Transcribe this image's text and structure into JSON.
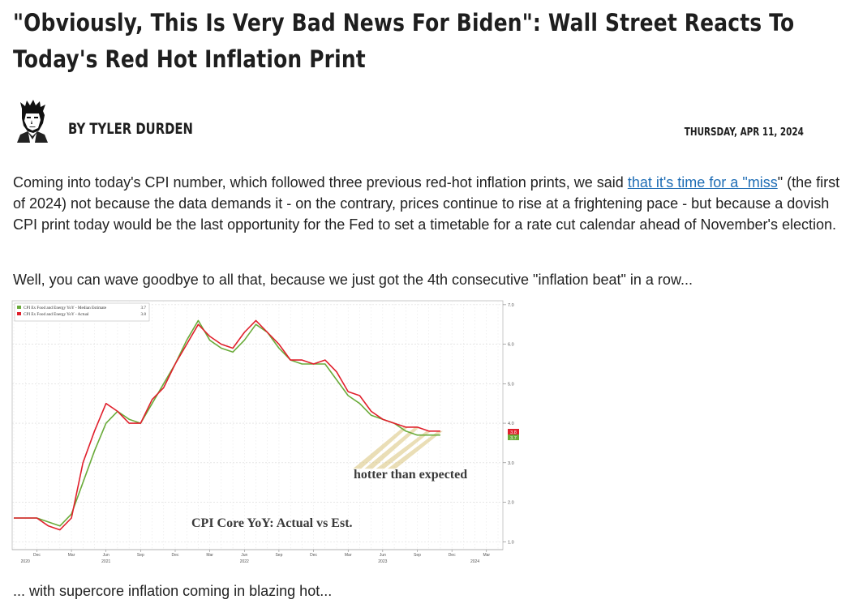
{
  "article": {
    "title": "\"Obviously, This Is Very Bad News For Biden\": Wall Street Reacts To Today's Red Hot Inflation Print",
    "author": "BY TYLER DURDEN",
    "date": "THURSDAY, APR 11, 2024",
    "para1_before": "Coming into today's CPI number, which followed three previous red-hot inflation prints, we said ",
    "para1_link": "that it's time for a \"miss",
    "para1_after": "\" (the first of 2024) not because the data demands it - on the contrary, prices continue to rise at a frightening pace - but because a dovish CPI print today would be the last opportunity for the Fed to set a timetable for a rate cut calendar ahead of November's election.",
    "para2": "Well, you can wave goodbye to all that, because we just got the 4th consecutive \"inflation beat\" in a row...",
    "para3": "... with supercore inflation coming in blazing hot..."
  },
  "colors": {
    "estimate": "#6aab3a",
    "actual": "#e0202c",
    "highlight": "#d9c27a"
  },
  "chart_data": {
    "type": "line",
    "title": "CPI Core YoY: Actual vs Est.",
    "annotation": "hotter than expected",
    "ylim": [
      0.8,
      7.1
    ],
    "yticks": [
      "7.0",
      "6.0",
      "5.0",
      "4.0",
      "3.0",
      "2.0",
      "1.0"
    ],
    "ytick_values": [
      7.0,
      6.0,
      5.0,
      4.0,
      3.0,
      2.0,
      1.0
    ],
    "xticks": [
      {
        "i": 2,
        "label": "Dec"
      },
      {
        "i": 5,
        "label": "Mar"
      },
      {
        "i": 8,
        "label": "Jun"
      },
      {
        "i": 11,
        "label": "Sep"
      },
      {
        "i": 14,
        "label": "Dec"
      },
      {
        "i": 17,
        "label": "Mar"
      },
      {
        "i": 20,
        "label": "Jun"
      },
      {
        "i": 23,
        "label": "Sep"
      },
      {
        "i": 26,
        "label": "Dec"
      },
      {
        "i": 29,
        "label": "Mar"
      },
      {
        "i": 32,
        "label": "Jun"
      },
      {
        "i": 35,
        "label": "Sep"
      },
      {
        "i": 38,
        "label": "Dec"
      },
      {
        "i": 41,
        "label": "Mar"
      }
    ],
    "year_labels": [
      {
        "i": 1,
        "label": "2020"
      },
      {
        "i": 8,
        "label": "2021"
      },
      {
        "i": 20,
        "label": "2022"
      },
      {
        "i": 32,
        "label": "2023"
      },
      {
        "i": 40,
        "label": "2024"
      }
    ],
    "legend": [
      {
        "label": "CPI Ex Food and Energy YoY - Median Estimate",
        "value": "3.7"
      },
      {
        "label": "CPI Ex Food and Energy YoY - Actual",
        "value": "3.8"
      }
    ],
    "last_labels": [
      "3.8",
      "3.7"
    ],
    "series": [
      {
        "name": "Estimate",
        "values": [
          1.6,
          1.6,
          1.6,
          1.5,
          1.4,
          1.7,
          2.5,
          3.3,
          4.0,
          4.3,
          4.1,
          4.0,
          4.5,
          5.0,
          5.5,
          6.1,
          6.6,
          6.1,
          5.9,
          5.8,
          6.1,
          6.5,
          6.3,
          5.9,
          5.6,
          5.5,
          5.5,
          5.5,
          5.1,
          4.7,
          4.5,
          4.2,
          4.1,
          4.0,
          3.8,
          3.7,
          3.7,
          3.7
        ]
      },
      {
        "name": "Actual",
        "values": [
          1.6,
          1.6,
          1.6,
          1.4,
          1.3,
          1.6,
          3.0,
          3.8,
          4.5,
          4.3,
          4.0,
          4.0,
          4.6,
          4.9,
          5.5,
          6.0,
          6.5,
          6.2,
          6.0,
          5.9,
          6.3,
          6.6,
          6.3,
          6.0,
          5.6,
          5.6,
          5.5,
          5.6,
          5.3,
          4.8,
          4.7,
          4.3,
          4.1,
          4.0,
          3.9,
          3.9,
          3.8,
          3.8
        ]
      }
    ]
  }
}
